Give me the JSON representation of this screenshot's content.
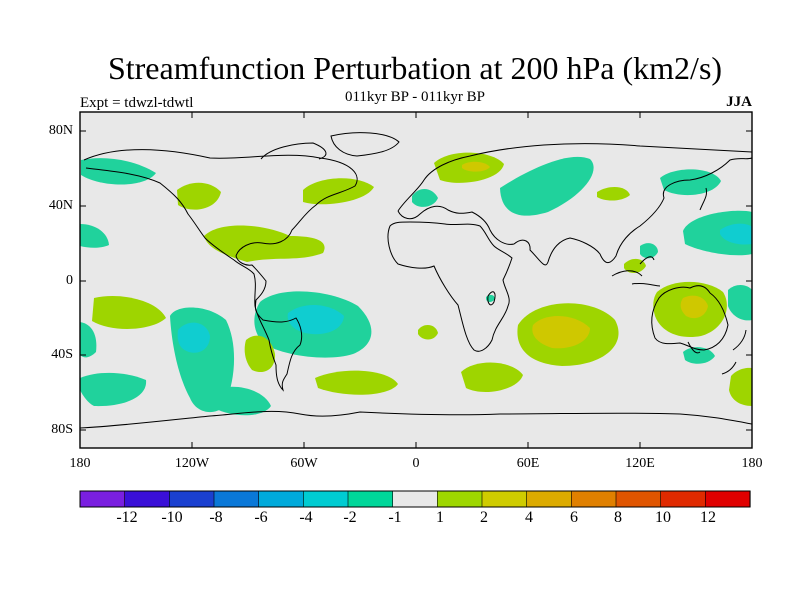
{
  "title": "Streamfunction Perturbation at 200 hPa (km2/s)",
  "subtitle": "011kyr BP - 011kyr BP",
  "experiment": "Expt = tdwzl-tdwtl",
  "season": "JJA",
  "lat_ticks": [
    "80N",
    "40N",
    "0",
    "40S",
    "80S"
  ],
  "lon_ticks": [
    "180",
    "120W",
    "60W",
    "0",
    "60E",
    "120E",
    "180"
  ],
  "colorbar": {
    "labels": [
      "-12",
      "-10",
      "-8",
      "-6",
      "-4",
      "-2",
      "-1",
      "1",
      "2",
      "4",
      "6",
      "8",
      "10",
      "12"
    ],
    "colors": [
      "#7a1fe0",
      "#3a10d8",
      "#1a40d0",
      "#0a78d8",
      "#00aadb",
      "#00ccd2",
      "#00d79a",
      "#e8e8e8",
      "#9ed700",
      "#cfcc00",
      "#dcab00",
      "#e08000",
      "#e05500",
      "#e02a00",
      "#e00000"
    ]
  },
  "map": {
    "background_color": "#e8e8e8",
    "negative_fill": "#20d29c",
    "negative_strong_fill": "#10cdd0",
    "positive_fill": "#9ed500",
    "positive_strong_fill": "#cfc800"
  }
}
